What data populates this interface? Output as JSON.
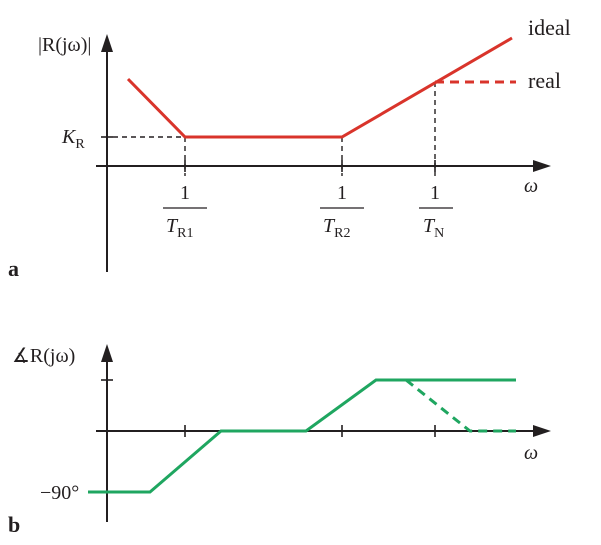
{
  "panel_a": {
    "label": "a",
    "y_axis_label": "|R(jω)|",
    "x_axis_label": "ω",
    "level_label_main": "K",
    "level_label_sub": "R",
    "ticks": [
      {
        "numerator": "1",
        "denominator_main": "T",
        "denominator_sub": "R1"
      },
      {
        "numerator": "1",
        "denominator_main": "T",
        "denominator_sub": "R2"
      },
      {
        "numerator": "1",
        "denominator_main": "T",
        "denominator_sub": "N"
      }
    ],
    "legend": {
      "ideal": "ideal",
      "real": "real"
    }
  },
  "panel_b": {
    "label": "b",
    "y_axis_label": "∡R(jω)",
    "x_axis_label": "ω",
    "level_label": "−90°"
  },
  "colors": {
    "magnitude": "#d9342b",
    "phase": "#1fa660",
    "ink": "#231f20"
  }
}
